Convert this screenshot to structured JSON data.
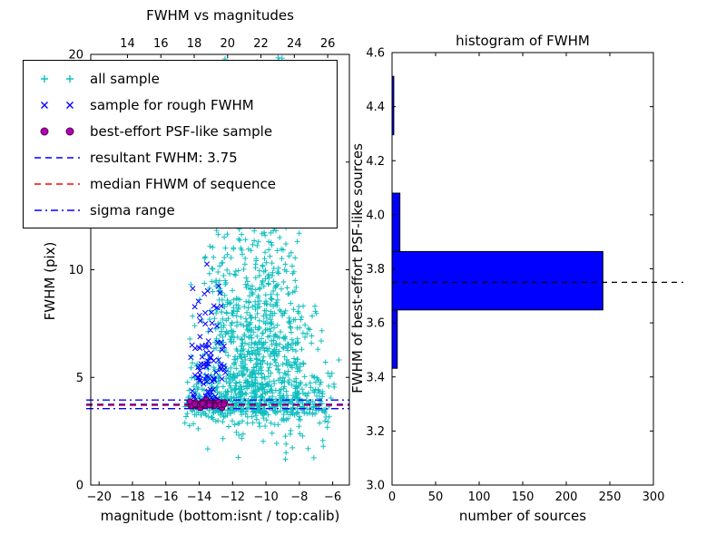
{
  "figure": {
    "background": "#ffffff"
  },
  "legend": {
    "items": [
      {
        "label": "all sample",
        "marker": "plus",
        "color": "#0fbfbf"
      },
      {
        "label": "sample for rough FWHM",
        "marker": "x",
        "color": "#0000ff"
      },
      {
        "label": "best-effort PSF-like sample",
        "marker": "circle",
        "color": "#b000b0",
        "edge": "#500050"
      },
      {
        "label": "resultant FWHM: 3.75",
        "marker": "dashed",
        "color": "#0000ff"
      },
      {
        "label": "median FHWM of sequence",
        "marker": "dashed",
        "color": "#ff0000"
      },
      {
        "label": "sigma range",
        "marker": "dashdot",
        "color": "#0000ff"
      }
    ]
  },
  "chart_data": [
    {
      "type": "scatter",
      "title": "FWHM vs magnitudes",
      "xlabel": "magnitude (bottom:isnt / top:calib)",
      "ylabel": "FWHM (pix)",
      "xlim": [
        -20.5,
        -5.0
      ],
      "top_xlim": [
        11.8,
        27.3
      ],
      "ylim": [
        0,
        20
      ],
      "x_ticks": {
        "values": [
          -20,
          -18,
          -16,
          -14,
          -12,
          -10,
          -8,
          -6
        ],
        "labels": [
          "−20",
          "−18",
          "−16",
          "−14",
          "−12",
          "−10",
          "−8",
          "−6"
        ]
      },
      "top_x_ticks": {
        "values": [
          14,
          16,
          18,
          20,
          22,
          24,
          26
        ],
        "labels": [
          "14",
          "16",
          "18",
          "20",
          "22",
          "24",
          "26"
        ]
      },
      "y_ticks": {
        "values": [
          0,
          5,
          10,
          15,
          20
        ],
        "labels": [
          "0",
          "5",
          "10",
          "15",
          "20"
        ]
      },
      "seed": 7,
      "series": [
        {
          "name": "all sample",
          "marker": "plus",
          "color": "#0fbfbf",
          "clusters": [
            {
              "n": 760,
              "x": {
                "dist": "normal",
                "mean": -10.4,
                "sd": 1.85,
                "min": -15.05,
                "max": -5.6
              },
              "y": {
                "dist": "halfnormal",
                "base": 3.3,
                "sd": 3.1,
                "min": 0.8,
                "max": 19.8
              }
            },
            {
              "n": 420,
              "x": {
                "dist": "normal",
                "mean": -11.2,
                "sd": 1.55,
                "min": -14.95,
                "max": -6.3
              },
              "y": {
                "dist": "uniform",
                "min": 6.5,
                "max": 19.9
              }
            },
            {
              "n": 270,
              "x": {
                "dist": "uniform",
                "min": -14.9,
                "max": -6.1
              },
              "y": {
                "dist": "normal",
                "mean": 3.7,
                "sd": 0.45,
                "min": 2.3,
                "max": 5.4
              }
            },
            {
              "n": 30,
              "x": {
                "dist": "uniform",
                "min": -13.5,
                "max": -6.5
              },
              "y": {
                "dist": "uniform",
                "min": 1.2,
                "max": 3.2
              }
            }
          ]
        },
        {
          "name": "sample for rough FWHM",
          "marker": "x",
          "color": "#0000ff",
          "clusters": [
            {
              "n": 95,
              "x": {
                "dist": "normal",
                "mean": -13.5,
                "sd": 0.6,
                "min": -14.68,
                "max": -12.28
              },
              "y": {
                "dist": "halfnormal",
                "base": 3.85,
                "sd": 2.5,
                "min": 3.4,
                "max": 11.8
              }
            }
          ]
        },
        {
          "name": "best-effort PSF-like sample",
          "marker": "circle",
          "color": "#b000b0",
          "edge": "#500050",
          "clusters": [
            {
              "n": 55,
              "x": {
                "dist": "uniform",
                "min": -14.6,
                "max": -12.45
              },
              "y": {
                "dist": "normal",
                "mean": 3.75,
                "sd": 0.07,
                "min": 3.5,
                "max": 4.0
              }
            }
          ]
        }
      ],
      "lines": [
        {
          "name": "resultant FWHM",
          "y": 3.75,
          "style": "dashed",
          "color": "#0000ff"
        },
        {
          "name": "median FHWM of sequence",
          "y": 3.7,
          "style": "dashed",
          "color": "#ff0000"
        },
        {
          "name": "sigma range low",
          "y": 3.55,
          "style": "dashdot",
          "color": "#0000ff"
        },
        {
          "name": "sigma range high",
          "y": 3.95,
          "style": "dashdot",
          "color": "#0000ff"
        }
      ]
    },
    {
      "type": "bar",
      "orientation": "horizontal",
      "title": "histogram of FWHM",
      "xlabel": "number of sources",
      "ylabel": "FWHM of best-effort PSF-like sources",
      "xlim": [
        0,
        300
      ],
      "ylim": [
        3.0,
        4.6
      ],
      "x_ticks": {
        "values": [
          0,
          50,
          100,
          150,
          200,
          250,
          300
        ],
        "labels": [
          "0",
          "50",
          "100",
          "150",
          "200",
          "250",
          "300"
        ]
      },
      "y_ticks": {
        "values": [
          3.0,
          3.2,
          3.4,
          3.6,
          3.8,
          4.0,
          4.2,
          4.4,
          4.6
        ],
        "labels": [
          "3.0",
          "3.2",
          "3.4",
          "3.6",
          "3.8",
          "4.0",
          "4.2",
          "4.4",
          "4.6"
        ]
      },
      "bin_edges": [
        3.432,
        3.648,
        3.864,
        4.08,
        4.296,
        4.512
      ],
      "counts": [
        6,
        242,
        9,
        0,
        2
      ],
      "bar_color": "#0000ff",
      "bar_edge": "#000000",
      "dashed_line_y": 3.75,
      "dashed_line_color": "#000000"
    }
  ]
}
